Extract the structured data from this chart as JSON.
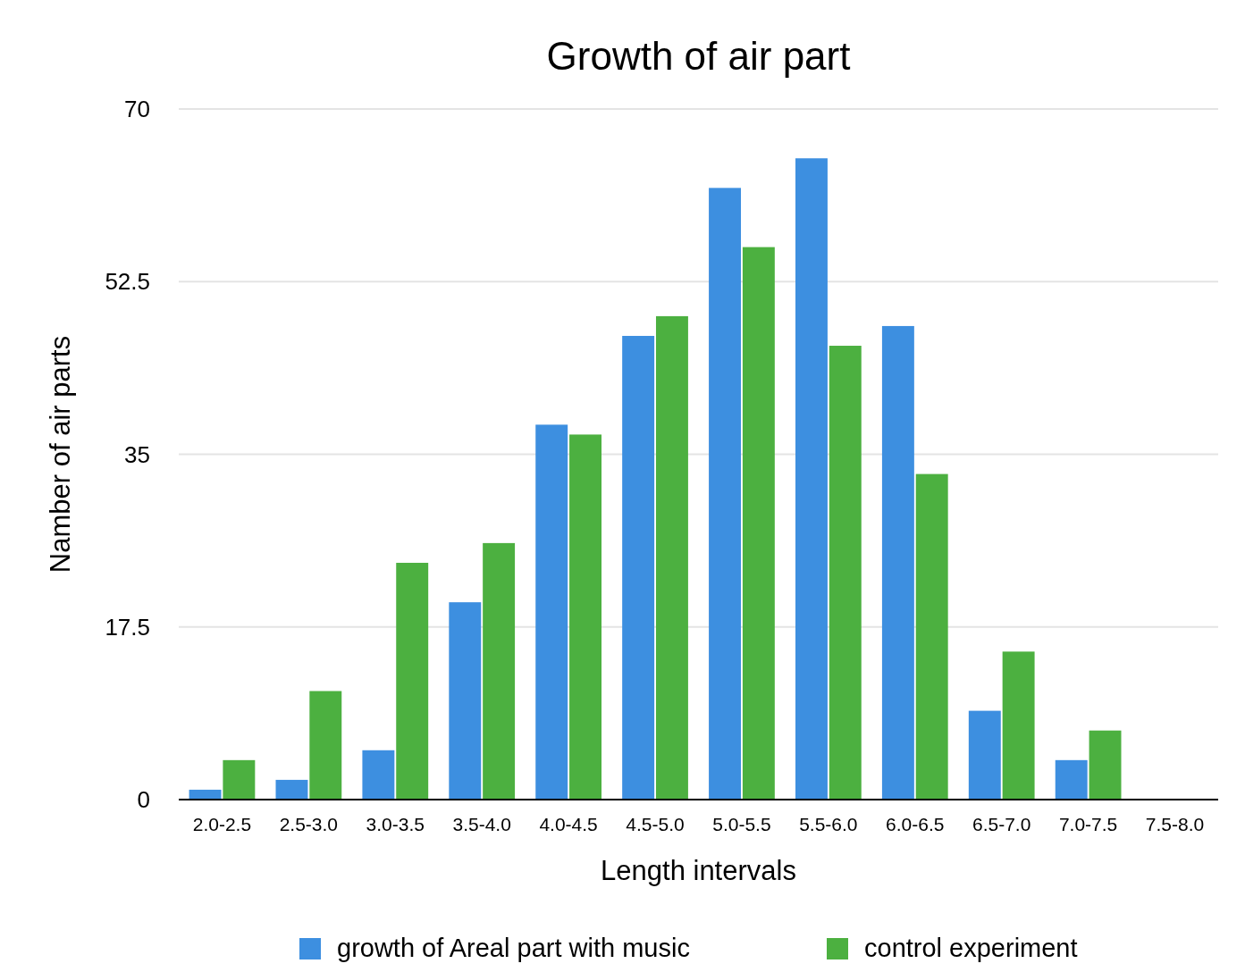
{
  "chart_data": {
    "type": "bar",
    "title": "Growth of air part",
    "xlabel": "Length intervals",
    "ylabel": "Namber of air parts",
    "categories": [
      "2.0-2.5",
      "2.5-3.0",
      "3.0-3.5",
      "3.5-4.0",
      "4.0-4.5",
      "4.5-5.0",
      "5.0-5.5",
      "5.5-6.0",
      "6.0-6.5",
      "6.5-7.0",
      "7.0-7.5",
      "7.5-8.0"
    ],
    "series": [
      {
        "name": "growth of Areal part with music",
        "color": "#3d8fe0",
        "values": [
          1,
          2,
          5,
          20,
          38,
          47,
          62,
          65,
          48,
          9,
          4,
          0
        ]
      },
      {
        "name": "control experiment",
        "color": "#4cb040",
        "values": [
          4,
          11,
          24,
          26,
          37,
          49,
          56,
          46,
          33,
          15,
          7,
          0
        ]
      }
    ],
    "ylim": [
      0,
      70
    ],
    "yticks": [
      0,
      17.5,
      35,
      52.5,
      70
    ],
    "grid": "y",
    "legend": "bottom"
  }
}
